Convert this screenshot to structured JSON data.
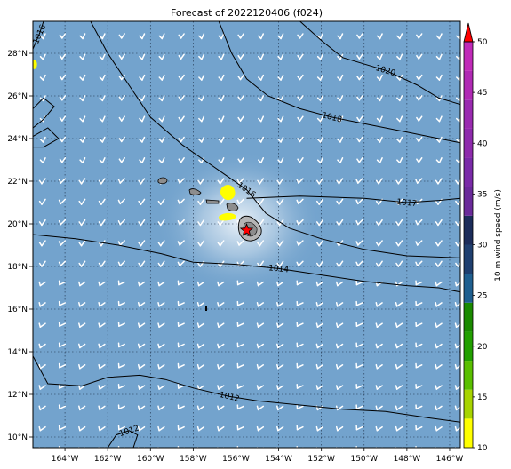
{
  "title": "Forecast of 2022120406 (f024)",
  "map": {
    "lon_ticks": [
      "164°W",
      "162°W",
      "160°W",
      "158°W",
      "156°W",
      "154°W",
      "152°W",
      "150°W",
      "148°W",
      "146°W"
    ],
    "lat_ticks": [
      "28°N",
      "26°N",
      "24°N",
      "22°N",
      "20°N",
      "18°N",
      "16°N",
      "14°N",
      "12°N",
      "10°N"
    ],
    "lon_range": [
      -165.5,
      -145.5
    ],
    "lat_range": [
      9.5,
      29.5
    ],
    "ocean_color": "#73a3cd",
    "wind_barb_color": "#ffffff",
    "contour_color": "#000000",
    "marker_color": "#ff0000",
    "marker_location": {
      "lon": -155.5,
      "lat": 19.7
    },
    "contours": [
      {
        "label": "1020",
        "path": [
          [
            -153,
            29.5
          ],
          [
            -152,
            28.6
          ],
          [
            -151,
            27.8
          ],
          [
            -149,
            27.2
          ],
          [
            -147.5,
            26.5
          ],
          [
            -146.5,
            25.9
          ],
          [
            -145.5,
            25.6
          ]
        ]
      },
      {
        "label": "1018",
        "path": [
          [
            -156.8,
            29.5
          ],
          [
            -156.2,
            28
          ],
          [
            -155.5,
            26.8
          ],
          [
            -154.5,
            26
          ],
          [
            -153,
            25.4
          ],
          [
            -151.5,
            25.0
          ],
          [
            -149.5,
            24.6
          ],
          [
            -148,
            24.3
          ],
          [
            -146.5,
            24.0
          ],
          [
            -145.5,
            23.8
          ]
        ]
      },
      {
        "label": "1016",
        "path": [
          [
            -162.8,
            29.5
          ],
          [
            -162,
            28
          ],
          [
            -161,
            26.5
          ],
          [
            -160,
            25.0
          ],
          [
            -158.5,
            23.7
          ],
          [
            -157.5,
            23.0
          ],
          [
            -156.5,
            22.3
          ],
          [
            -155.5,
            21.6
          ],
          [
            -154.6,
            20.5
          ],
          [
            -153.5,
            19.8
          ],
          [
            -152,
            19.3
          ],
          [
            -150,
            18.8
          ],
          [
            -148,
            18.5
          ],
          [
            -145.5,
            18.4
          ]
        ]
      },
      {
        "label": "1017",
        "path": [
          [
            -155.5,
            21.2
          ],
          [
            -153,
            21.3
          ],
          [
            -150,
            21.2
          ],
          [
            -148,
            21.0
          ],
          [
            -146.5,
            21.1
          ],
          [
            -145.5,
            21.2
          ]
        ]
      },
      {
        "label": "1014",
        "path": [
          [
            -165.5,
            19.5
          ],
          [
            -163.5,
            19.3
          ],
          [
            -161.5,
            19.0
          ],
          [
            -159.5,
            18.6
          ],
          [
            -158,
            18.2
          ],
          [
            -156,
            18.1
          ],
          [
            -154,
            17.9
          ],
          [
            -152,
            17.6
          ],
          [
            -150,
            17.3
          ],
          [
            -148,
            17.1
          ],
          [
            -146.5,
            17.0
          ],
          [
            -145.5,
            16.8
          ]
        ]
      },
      {
        "label": "1012",
        "path": [
          [
            -165.5,
            13.8
          ],
          [
            -164.8,
            12.5
          ],
          [
            -163.2,
            12.4
          ],
          [
            -162,
            12.8
          ],
          [
            -160.5,
            12.9
          ],
          [
            -159.3,
            12.7
          ],
          [
            -158,
            12.3
          ],
          [
            -156.3,
            11.9
          ],
          [
            -155,
            11.7
          ],
          [
            -153,
            11.5
          ],
          [
            -151,
            11.3
          ],
          [
            -149,
            11.2
          ],
          [
            -147,
            10.9
          ],
          [
            -145.5,
            10.7
          ]
        ]
      },
      {
        "label": "1016",
        "path": [
          [
            -165.5,
            28.2
          ],
          [
            -165.2,
            28.9
          ],
          [
            -165.0,
            29.5
          ]
        ]
      },
      {
        "label": "1012",
        "path": [
          [
            -162,
            9.5
          ],
          [
            -161.6,
            10.1
          ],
          [
            -161.0,
            10.3
          ],
          [
            -160.6,
            10.1
          ],
          [
            -160.8,
            9.5
          ]
        ]
      },
      {
        "label": "",
        "path": [
          [
            -165.5,
            25.4
          ],
          [
            -165.0,
            25.9
          ],
          [
            -164.5,
            25.5
          ],
          [
            -165.0,
            24.9
          ],
          [
            -165.5,
            24.5
          ]
        ]
      },
      {
        "label": "",
        "path": [
          [
            -165.5,
            24.1
          ],
          [
            -164.8,
            24.5
          ],
          [
            -164.3,
            24.0
          ],
          [
            -165.0,
            23.6
          ],
          [
            -165.5,
            23.6
          ]
        ]
      }
    ]
  },
  "colorbar": {
    "label": "10 m wind speed (m/s)",
    "ticks": [
      "10",
      "15",
      "20",
      "25",
      "30",
      "35",
      "40",
      "45",
      "50"
    ],
    "colors": [
      "#ffff00",
      "#a8d400",
      "#5abf00",
      "#22a000",
      "#1a8a00",
      "#1f5f8f",
      "#1f3f6f",
      "#1c2c5a",
      "#6a2a9a",
      "#7a2aa8",
      "#8e2aac",
      "#9a2ab0",
      "#b02ab4",
      "#c02ab8"
    ],
    "extend_color": "#ff0000"
  }
}
